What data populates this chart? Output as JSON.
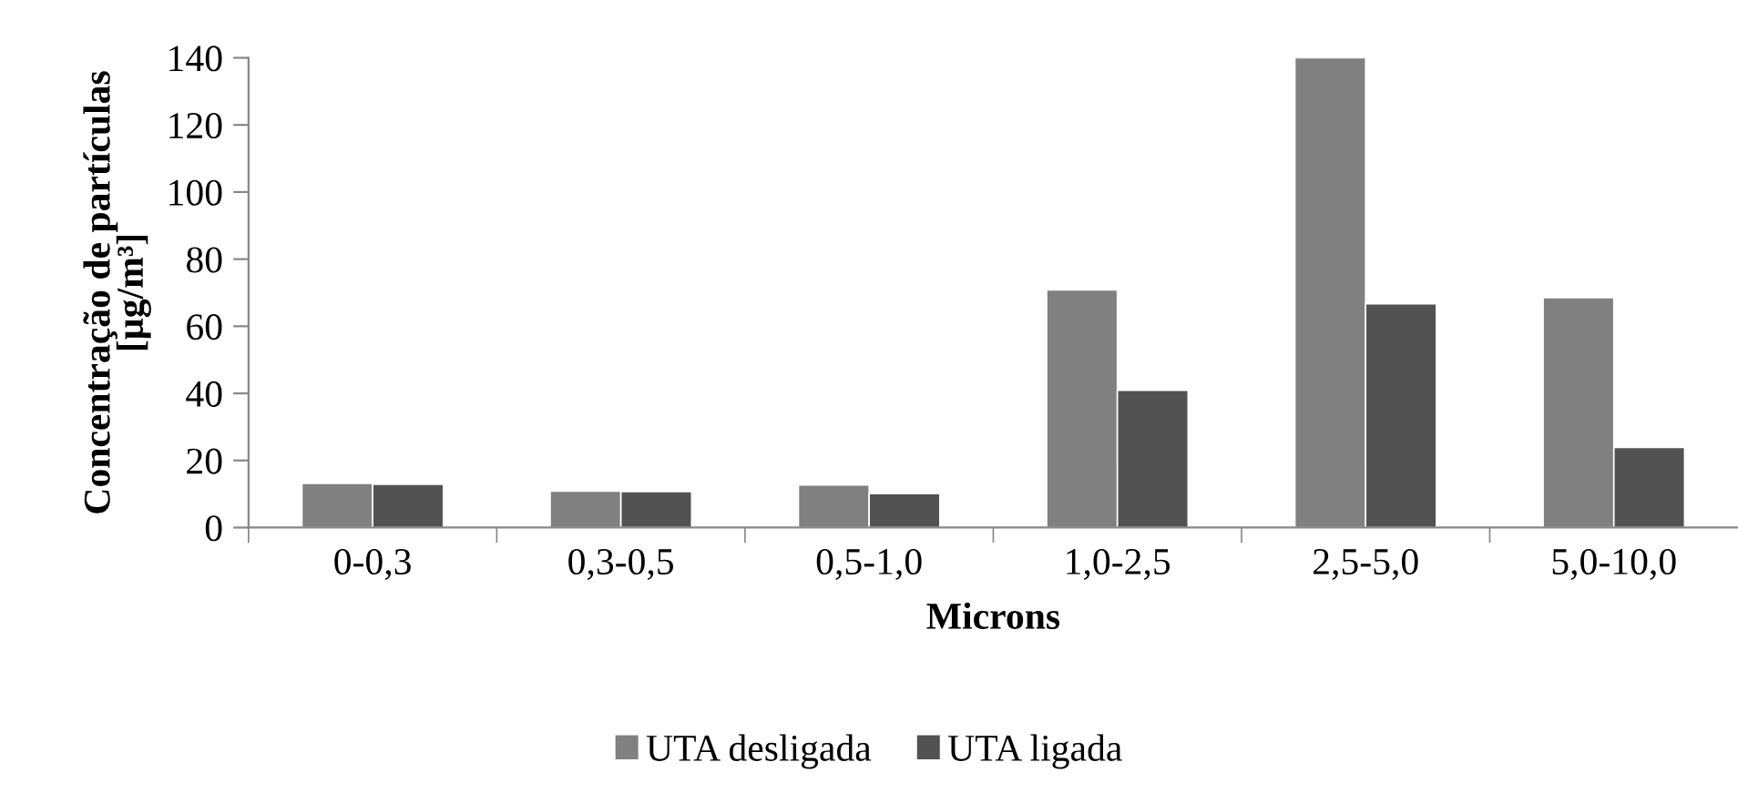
{
  "chart_data": {
    "type": "bar",
    "xlabel": "Microns",
    "ylabel": "Concentração de partículas\n[µg/m³]",
    "categories": [
      "0-0,3",
      "0,3-0,5",
      "0,5-1,0",
      "1,0-2,5",
      "2,5-5,0",
      "5,0-10,0"
    ],
    "series": [
      {
        "name": "UTA desligada",
        "color": "#808080",
        "values": [
          13.2,
          10.9,
          12.7,
          70.8,
          140,
          68.5
        ]
      },
      {
        "name": "UTA ligada",
        "color": "#525252",
        "values": [
          12.9,
          10.7,
          10.1,
          40.9,
          66.7,
          23.9
        ]
      }
    ],
    "ylim": [
      0,
      140
    ],
    "yticks": [
      0,
      20,
      40,
      60,
      80,
      100,
      120,
      140
    ],
    "grid": false,
    "legend": "bottom"
  }
}
